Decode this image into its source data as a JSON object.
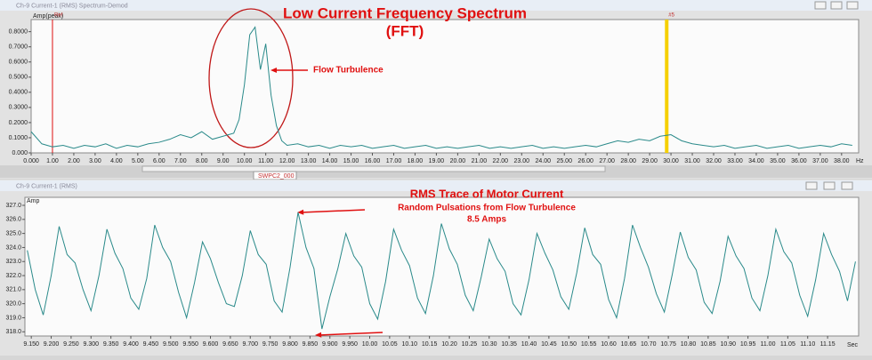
{
  "chart_data": [
    {
      "type": "line",
      "window_title": "Ch-9 Current-1 (RMS) Spectrum-Demod",
      "title": [
        "Low Current Frequency Spectrum",
        "(FFT)"
      ],
      "annotations": [
        "Flow Turbulence"
      ],
      "y_label": "Amp(peak)",
      "x_label": "Hz",
      "tab_label": "SWPC2_000",
      "xlim": [
        0,
        38.8
      ],
      "ylim": [
        0,
        0.88
      ],
      "xticks": [
        {
          "value": 0,
          "label": "0.000"
        },
        {
          "value": 1,
          "label": "1.00"
        },
        {
          "value": 2,
          "label": "2.00"
        },
        {
          "value": 3,
          "label": "3.00"
        },
        {
          "value": 4,
          "label": "4.00"
        },
        {
          "value": 5,
          "label": "5.00"
        },
        {
          "value": 6,
          "label": "6.00"
        },
        {
          "value": 7,
          "label": "7.00"
        },
        {
          "value": 8,
          "label": "8.00"
        },
        {
          "value": 9,
          "label": "9.00"
        },
        {
          "value": 10,
          "label": "10.00"
        },
        {
          "value": 11,
          "label": "11.00"
        },
        {
          "value": 12,
          "label": "12.00"
        },
        {
          "value": 13,
          "label": "13.00"
        },
        {
          "value": 14,
          "label": "14.00"
        },
        {
          "value": 15,
          "label": "15.00"
        },
        {
          "value": 16,
          "label": "16.00"
        },
        {
          "value": 17,
          "label": "17.00"
        },
        {
          "value": 18,
          "label": "18.00"
        },
        {
          "value": 19,
          "label": "19.00"
        },
        {
          "value": 20,
          "label": "20.00"
        },
        {
          "value": 21,
          "label": "21.00"
        },
        {
          "value": 22,
          "label": "22.00"
        },
        {
          "value": 23,
          "label": "23.00"
        },
        {
          "value": 24,
          "label": "24.00"
        },
        {
          "value": 25,
          "label": "25.00"
        },
        {
          "value": 26,
          "label": "26.00"
        },
        {
          "value": 27,
          "label": "27.00"
        },
        {
          "value": 28,
          "label": "28.00"
        },
        {
          "value": 29,
          "label": "29.00"
        },
        {
          "value": 30,
          "label": "30.00"
        },
        {
          "value": 31,
          "label": "31.00"
        },
        {
          "value": 32,
          "label": "32.00"
        },
        {
          "value": 33,
          "label": "33.00"
        },
        {
          "value": 34,
          "label": "34.00"
        },
        {
          "value": 35,
          "label": "35.00"
        },
        {
          "value": 36,
          "label": "36.00"
        },
        {
          "value": 37,
          "label": "37.00"
        },
        {
          "value": 38,
          "label": "38.00"
        }
      ],
      "yticks": [
        {
          "value": 0,
          "label": "0.000"
        },
        {
          "value": 0.1,
          "label": "0.1000"
        },
        {
          "value": 0.2,
          "label": "0.2000"
        },
        {
          "value": 0.3,
          "label": "0.3000"
        },
        {
          "value": 0.4,
          "label": "0.4000"
        },
        {
          "value": 0.5,
          "label": "0.5000"
        },
        {
          "value": 0.6,
          "label": "0.6000"
        },
        {
          "value": 0.7,
          "label": "0.7000"
        },
        {
          "value": 0.8,
          "label": "0.8000"
        }
      ],
      "markers": [
        {
          "label": "Ref",
          "x": 1.0,
          "color": "#e01010"
        },
        {
          "label": "#5",
          "x": 29.8,
          "color": "#f5d000"
        }
      ],
      "x": [
        0,
        0.5,
        1,
        1.5,
        2,
        2.5,
        3,
        3.5,
        4,
        4.5,
        5,
        5.5,
        6,
        6.5,
        7,
        7.5,
        8,
        8.5,
        9,
        9.5,
        9.75,
        10,
        10.25,
        10.5,
        10.75,
        11,
        11.25,
        11.5,
        11.75,
        12,
        12.5,
        13,
        13.5,
        14,
        14.5,
        15,
        15.5,
        16,
        16.5,
        17,
        17.5,
        18,
        18.5,
        19,
        19.5,
        20,
        20.5,
        21,
        21.5,
        22,
        22.5,
        23,
        23.5,
        24,
        24.5,
        25,
        25.5,
        26,
        26.5,
        27,
        27.5,
        28,
        28.5,
        29,
        29.5,
        30,
        30.5,
        31,
        31.5,
        32,
        32.5,
        33,
        33.5,
        34,
        34.5,
        35,
        35.5,
        36,
        36.5,
        37,
        37.5,
        38,
        38.5
      ],
      "series": [
        {
          "color": "#2a8a8a",
          "values": [
            0.14,
            0.06,
            0.04,
            0.05,
            0.03,
            0.05,
            0.04,
            0.06,
            0.03,
            0.05,
            0.04,
            0.06,
            0.07,
            0.09,
            0.12,
            0.1,
            0.14,
            0.09,
            0.11,
            0.13,
            0.22,
            0.45,
            0.78,
            0.83,
            0.55,
            0.72,
            0.38,
            0.18,
            0.08,
            0.05,
            0.06,
            0.04,
            0.05,
            0.03,
            0.05,
            0.04,
            0.05,
            0.03,
            0.04,
            0.05,
            0.03,
            0.04,
            0.05,
            0.03,
            0.04,
            0.03,
            0.04,
            0.05,
            0.03,
            0.04,
            0.03,
            0.04,
            0.05,
            0.03,
            0.04,
            0.03,
            0.04,
            0.05,
            0.04,
            0.06,
            0.08,
            0.07,
            0.09,
            0.08,
            0.11,
            0.12,
            0.08,
            0.06,
            0.05,
            0.04,
            0.05,
            0.03,
            0.04,
            0.05,
            0.03,
            0.04,
            0.05,
            0.03,
            0.04,
            0.05,
            0.04,
            0.06,
            0.05
          ]
        }
      ]
    },
    {
      "type": "line",
      "window_title": "Ch-9 Current-1 (RMS)",
      "title": [
        "RMS Trace of Motor Current"
      ],
      "annotations": [
        "Random Pulsations from Flow Turbulence",
        "8.5 Amps"
      ],
      "y_label": "Amp",
      "x_label": "Sec",
      "xlim": [
        9.134,
        11.228
      ],
      "ylim": [
        317.7,
        327.57
      ],
      "xticks": [
        {
          "value": 9.15,
          "label": "9.150"
        },
        {
          "value": 9.2,
          "label": "9.200"
        },
        {
          "value": 9.25,
          "label": "9.250"
        },
        {
          "value": 9.3,
          "label": "9.300"
        },
        {
          "value": 9.35,
          "label": "9.350"
        },
        {
          "value": 9.4,
          "label": "9.400"
        },
        {
          "value": 9.45,
          "label": "9.450"
        },
        {
          "value": 9.5,
          "label": "9.500"
        },
        {
          "value": 9.55,
          "label": "9.550"
        },
        {
          "value": 9.6,
          "label": "9.600"
        },
        {
          "value": 9.65,
          "label": "9.650"
        },
        {
          "value": 9.7,
          "label": "9.700"
        },
        {
          "value": 9.75,
          "label": "9.750"
        },
        {
          "value": 9.8,
          "label": "9.800"
        },
        {
          "value": 9.85,
          "label": "9.850"
        },
        {
          "value": 9.9,
          "label": "9.900"
        },
        {
          "value": 9.95,
          "label": "9.950"
        },
        {
          "value": 10,
          "label": "10.00"
        },
        10.05,
        {
          "value": 10.1,
          "label": "10.10"
        },
        10.15,
        {
          "value": 10.2,
          "label": "10.20"
        },
        10.25,
        {
          "value": 10.3,
          "label": "10.30"
        },
        10.35,
        {
          "value": 10.4,
          "label": "10.40"
        },
        10.45,
        {
          "value": 10.5,
          "label": "10.50"
        },
        10.55,
        {
          "value": 10.6,
          "label": "10.60"
        },
        10.65,
        {
          "value": 10.7,
          "label": "10.70"
        },
        10.75,
        {
          "value": 10.8,
          "label": "10.80"
        },
        10.85,
        {
          "value": 10.9,
          "label": "10.90"
        },
        10.95,
        {
          "value": 11,
          "label": "11.00"
        },
        11.05,
        {
          "value": 11.1,
          "label": "11.10"
        },
        11.15
      ],
      "yticks": [
        {
          "value": 318,
          "label": "318.0"
        },
        {
          "value": 319,
          "label": "319.0"
        },
        {
          "value": 320,
          "label": "320.0"
        },
        {
          "value": 321,
          "label": "321.0"
        },
        {
          "value": 322,
          "label": "322.0"
        },
        {
          "value": 323,
          "label": "323.0"
        },
        {
          "value": 324,
          "label": "324.0"
        },
        {
          "value": 325,
          "label": "325.0"
        },
        {
          "value": 326,
          "label": "326.0"
        },
        {
          "value": 327,
          "label": "327.0"
        }
      ],
      "x": [
        9.14,
        9.16,
        9.18,
        9.2,
        9.22,
        9.24,
        9.26,
        9.28,
        9.3,
        9.32,
        9.34,
        9.36,
        9.38,
        9.4,
        9.42,
        9.44,
        9.46,
        9.48,
        9.5,
        9.52,
        9.54,
        9.56,
        9.58,
        9.6,
        9.62,
        9.64,
        9.66,
        9.68,
        9.7,
        9.72,
        9.74,
        9.76,
        9.78,
        9.8,
        9.82,
        9.84,
        9.86,
        9.88,
        9.9,
        9.92,
        9.94,
        9.96,
        9.98,
        10.0,
        10.02,
        10.04,
        10.06,
        10.08,
        10.1,
        10.12,
        10.14,
        10.16,
        10.18,
        10.2,
        10.22,
        10.24,
        10.26,
        10.28,
        10.3,
        10.32,
        10.34,
        10.36,
        10.38,
        10.4,
        10.42,
        10.44,
        10.46,
        10.48,
        10.5,
        10.52,
        10.54,
        10.56,
        10.58,
        10.6,
        10.62,
        10.64,
        10.66,
        10.68,
        10.7,
        10.72,
        10.74,
        10.76,
        10.78,
        10.8,
        10.82,
        10.84,
        10.86,
        10.88,
        10.9,
        10.92,
        10.94,
        10.96,
        10.98,
        11.0,
        11.02,
        11.04,
        11.06,
        11.08,
        11.1,
        11.12,
        11.14,
        11.16,
        11.18,
        11.2,
        11.22
      ],
      "series": [
        {
          "color": "#2a8a8a",
          "values": [
            323.8,
            321.0,
            319.2,
            322.0,
            325.5,
            323.5,
            322.9,
            321.0,
            319.5,
            322.0,
            325.3,
            323.6,
            322.5,
            320.4,
            319.6,
            321.8,
            325.6,
            324.0,
            323.0,
            320.8,
            319.0,
            321.5,
            324.4,
            323.2,
            321.5,
            320.0,
            319.8,
            322.0,
            325.2,
            323.5,
            322.8,
            320.2,
            319.4,
            322.6,
            326.5,
            324.0,
            322.5,
            318.2,
            320.5,
            322.5,
            325.0,
            323.4,
            322.6,
            320.0,
            318.9,
            321.6,
            325.3,
            323.8,
            322.7,
            320.4,
            319.3,
            322.0,
            325.7,
            323.9,
            322.8,
            320.6,
            319.5,
            321.9,
            324.6,
            323.2,
            322.3,
            320.0,
            319.2,
            321.7,
            325.0,
            323.6,
            322.4,
            320.5,
            319.6,
            322.2,
            325.4,
            323.5,
            322.8,
            320.3,
            319.0,
            321.8,
            325.6,
            324.0,
            322.6,
            320.7,
            319.4,
            322.1,
            325.1,
            323.3,
            322.4,
            320.1,
            319.3,
            321.6,
            324.8,
            323.4,
            322.5,
            320.4,
            319.5,
            322.0,
            325.3,
            323.7,
            322.9,
            320.6,
            319.1,
            321.7,
            325.0,
            323.5,
            322.3,
            320.2,
            323.0
          ]
        }
      ]
    }
  ]
}
